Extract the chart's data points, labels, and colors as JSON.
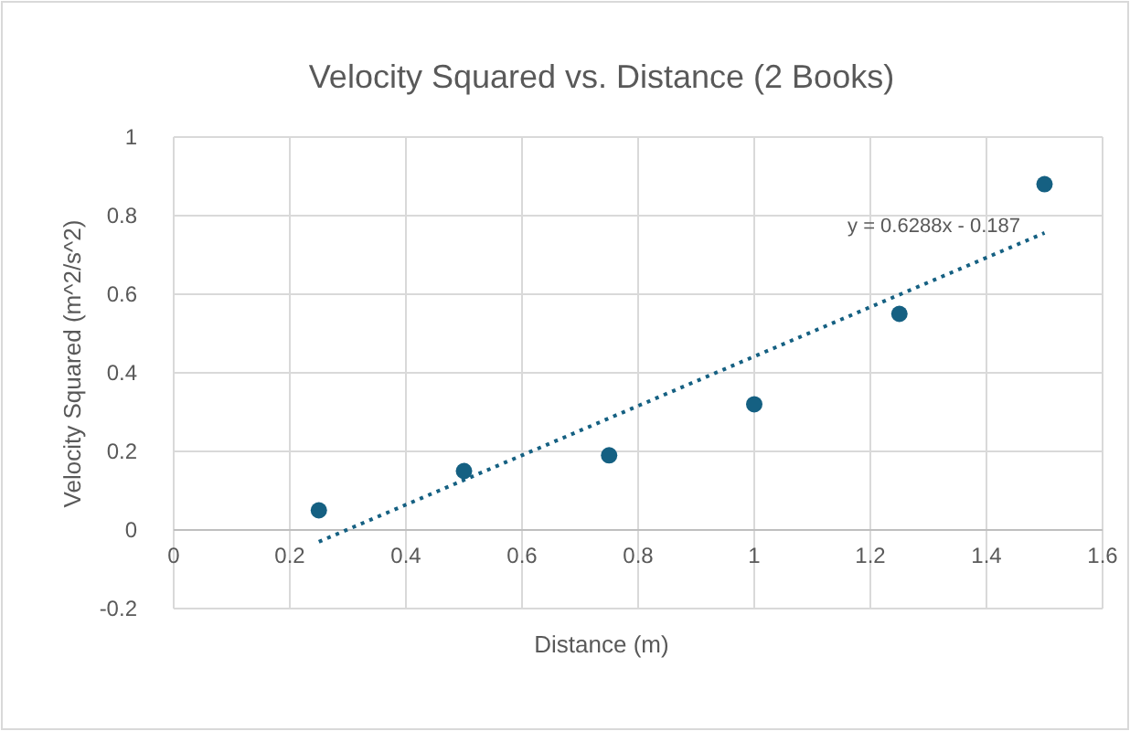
{
  "chart_data": {
    "type": "scatter",
    "title": "Velocity Squared vs. Distance (2 Books)",
    "xlabel": "Distance (m)",
    "ylabel": "Velocity Squared (m^2/s^2)",
    "xlim": [
      0,
      1.6
    ],
    "xticks": [
      0,
      0.2,
      0.4,
      0.6,
      0.8,
      1,
      1.2,
      1.4,
      1.6
    ],
    "ylim": [
      -0.2,
      1
    ],
    "yticks": [
      -0.2,
      0,
      0.2,
      0.4,
      0.6,
      0.8,
      1
    ],
    "grid": true,
    "series": [
      {
        "color": "#156082",
        "x": [
          0.25,
          0.5,
          0.75,
          1,
          1.25,
          1.5
        ],
        "values": [
          0.05,
          0.15,
          0.19,
          0.32,
          0.55,
          0.88
        ],
        "marker": "circle"
      },
      {
        "type": "line",
        "color": "#156082",
        "x": [
          0.25,
          1.5
        ],
        "values": [
          -0.03,
          0.756
        ],
        "line_style": "dotted",
        "marker": "none"
      }
    ],
    "annotations": [
      "y = 0.6288x - 0.187"
    ]
  }
}
